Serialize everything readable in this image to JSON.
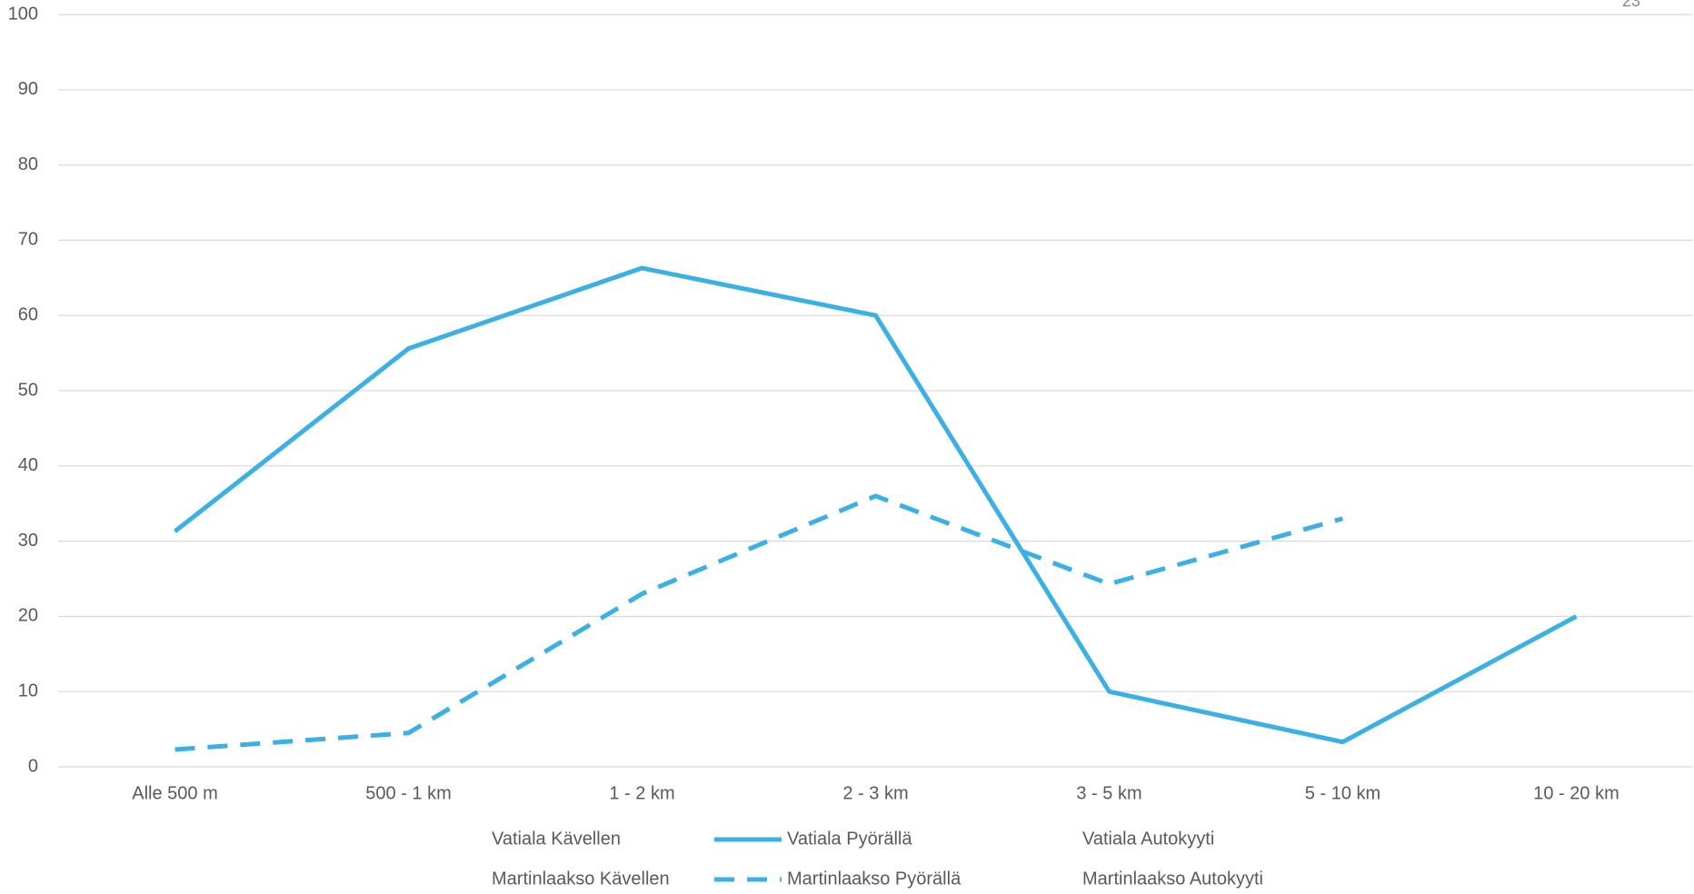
{
  "chart_data": {
    "type": "line",
    "page_number": "23",
    "categories": [
      "Alle 500 m",
      "500 - 1 km",
      "1 - 2 km",
      "2 - 3 km",
      "3 - 5 km",
      "5 - 10 km",
      "10 - 20 km"
    ],
    "series": [
      {
        "name": "Vatiala Kävellen",
        "values": [
          null,
          null,
          null,
          null,
          null,
          null,
          null
        ]
      },
      {
        "name": "Vatiala Pyörällä",
        "color": "#3bb0e4",
        "line_style": "solid",
        "values": [
          31.3,
          55.6,
          66.3,
          60,
          10,
          3.3,
          20
        ]
      },
      {
        "name": "Vatiala Autokyyti",
        "values": [
          null,
          null,
          null,
          null,
          null,
          null,
          null
        ]
      },
      {
        "name": "Martinlaakso Kävellen",
        "values": [
          null,
          null,
          null,
          null,
          null,
          null,
          null
        ]
      },
      {
        "name": "Martinlaakso Pyörällä",
        "color": "#3bb0e4",
        "line_style": "dashed",
        "values": [
          2.3,
          4.5,
          23,
          36,
          24.3,
          33,
          null
        ]
      },
      {
        "name": "Martinlaakso Autokyyti",
        "values": [
          null,
          null,
          null,
          null,
          null,
          null,
          null
        ]
      }
    ],
    "ylim": [
      0,
      100
    ],
    "yticks": [
      0,
      10,
      20,
      30,
      40,
      50,
      60,
      70,
      80,
      90,
      100
    ],
    "grid": true,
    "legend": "bottom"
  }
}
